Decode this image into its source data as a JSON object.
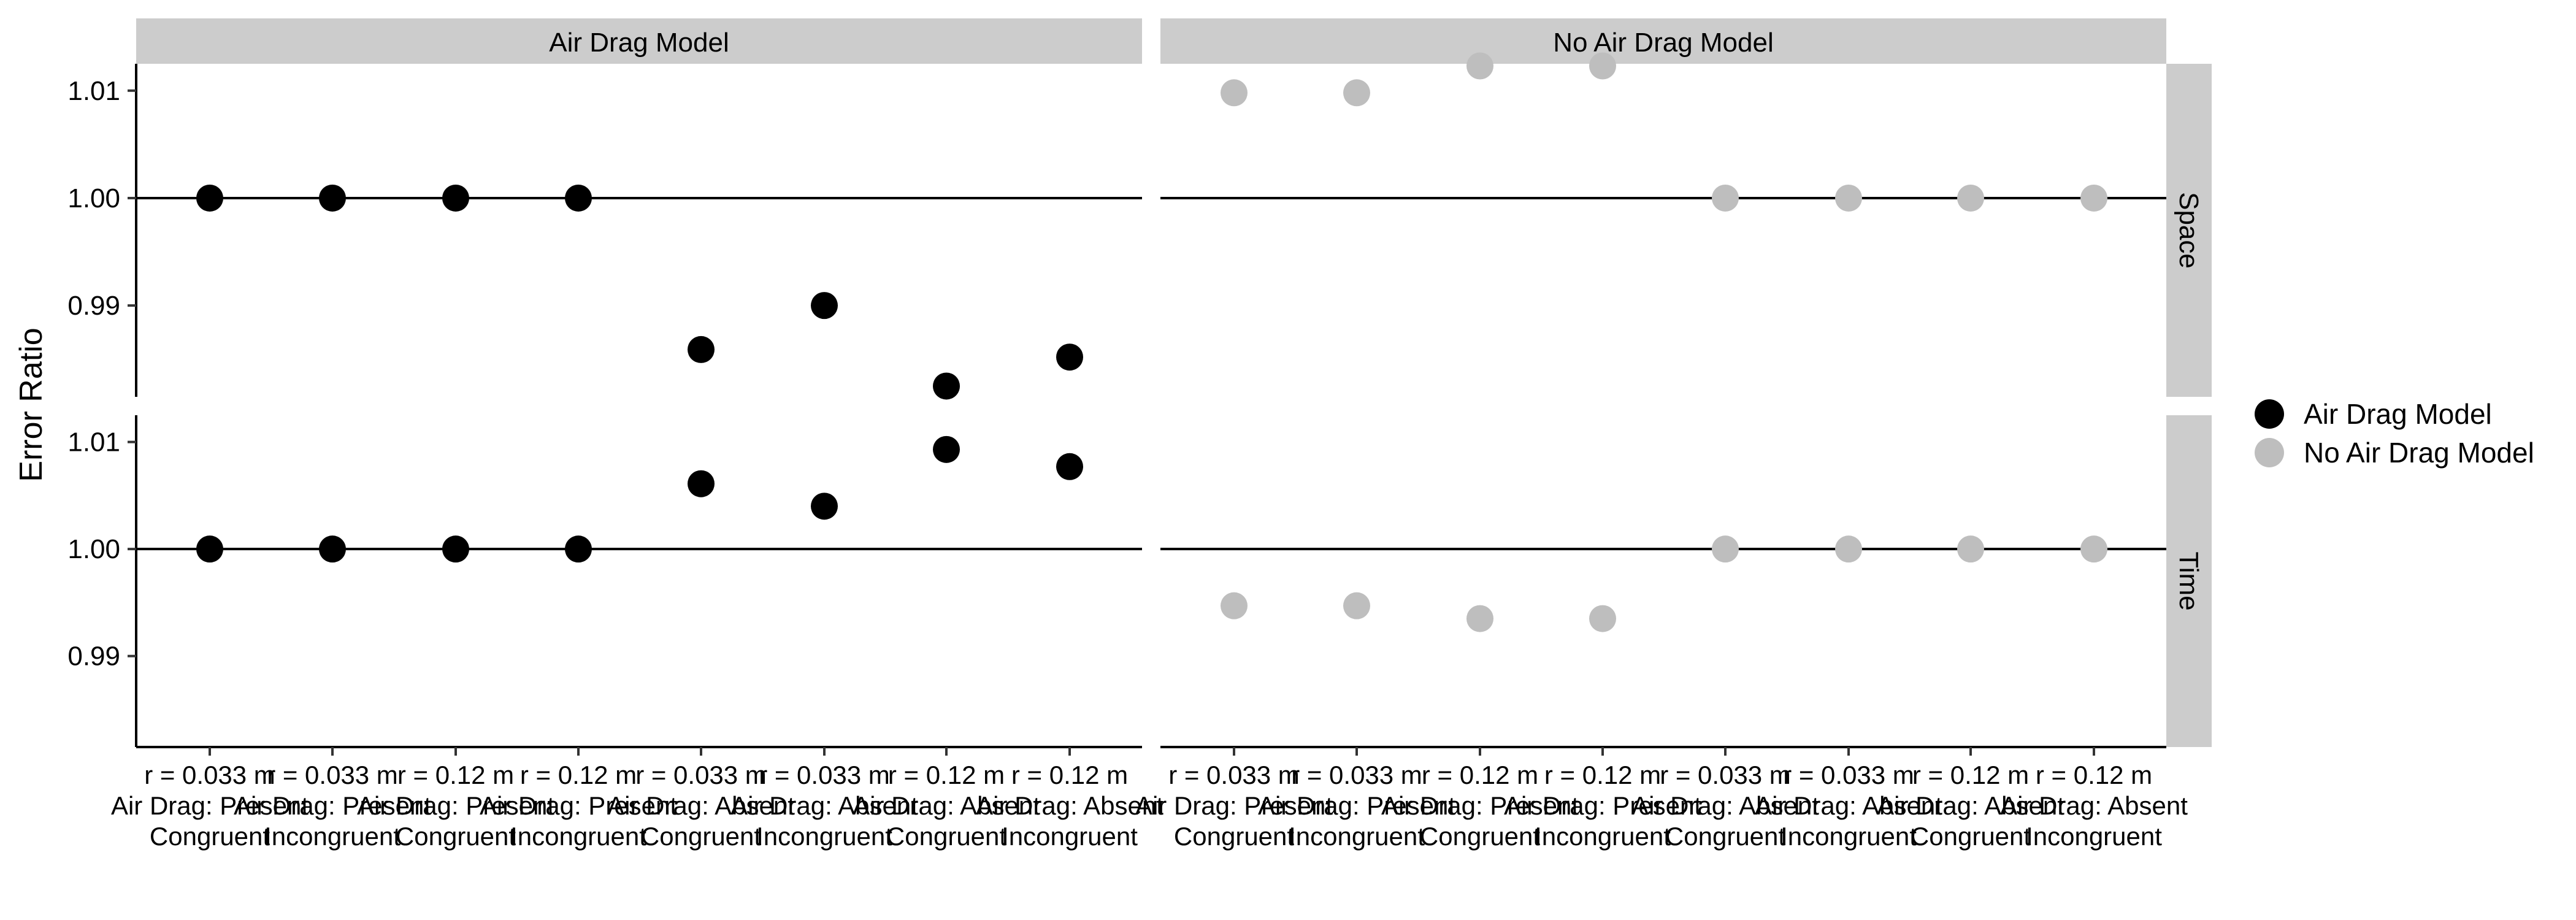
{
  "chart_data": {
    "type": "scatter",
    "ylabel": "Error Ratio",
    "xlabel": "",
    "facet_columns": [
      "Air Drag Model",
      "No Air Drag Model"
    ],
    "facet_rows": [
      "Space",
      "Time"
    ],
    "categories": [
      [
        "r = 0.033 m",
        "Air Drag: Present",
        "Congruent"
      ],
      [
        "r = 0.033 m",
        "Air Drag: Present",
        "Incongruent"
      ],
      [
        "r = 0.12 m",
        "Air Drag: Present",
        "Congruent"
      ],
      [
        "r = 0.12 m",
        "Air Drag: Present",
        "Incongruent"
      ],
      [
        "r = 0.033 m",
        "Air Drag: Absent",
        "Congruent"
      ],
      [
        "r = 0.033 m",
        "Air Drag: Absent",
        "Incongruent"
      ],
      [
        "r = 0.12 m",
        "Air Drag: Absent",
        "Congruent"
      ],
      [
        "r = 0.12 m",
        "Air Drag: Absent",
        "Incongruent"
      ]
    ],
    "y_ticks": [
      "0.99",
      "1.00",
      "1.01"
    ],
    "y_tick_values": [
      0.99,
      1.0,
      1.01
    ],
    "ylim": [
      0.9815,
      1.0125
    ],
    "reference_line": 1.0,
    "grid": false,
    "legend_position": "right",
    "series": [
      {
        "name": "Air Drag Model",
        "color": "#000000",
        "panels": {
          "Space": [
            1.0,
            1.0,
            1.0,
            1.0,
            0.9859,
            0.99,
            0.9825,
            0.9852
          ],
          "Time": [
            1.0,
            1.0,
            1.0,
            1.0,
            1.0061,
            1.004,
            1.0093,
            1.0077
          ]
        }
      },
      {
        "name": "No Air Drag Model",
        "color": "#bebebe",
        "panels": {
          "Space": [
            1.0098,
            1.0098,
            1.0123,
            1.0123,
            1.0,
            1.0,
            1.0,
            1.0
          ],
          "Time": [
            0.9947,
            0.9947,
            0.9935,
            0.9935,
            1.0,
            1.0,
            1.0,
            1.0
          ]
        }
      }
    ]
  }
}
